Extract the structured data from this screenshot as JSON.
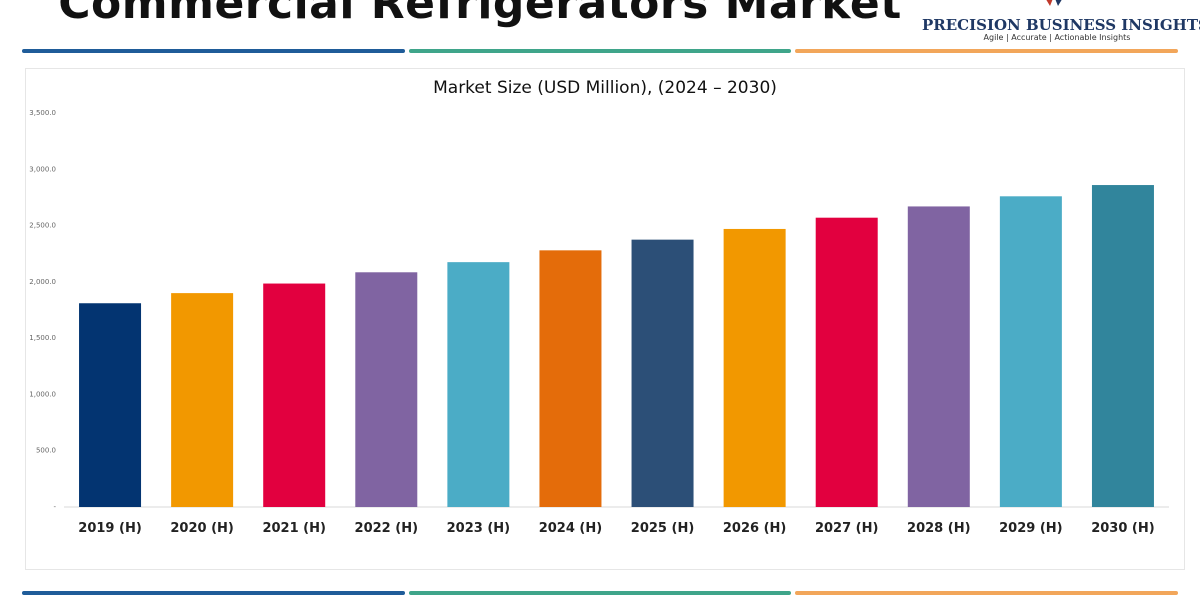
{
  "header": {
    "title": "Commercial Refrigerators Market",
    "logo_name": "PRECISION BUSINESS INSIGHTS",
    "logo_tagline": "Agile | Accurate | Actionable Insights"
  },
  "colors": {
    "stripe": [
      "#1f5c99",
      "#3fa58a",
      "#f2a65a"
    ],
    "bars": [
      "#033471",
      "#f29800",
      "#e2003f",
      "#8064a2",
      "#4bacc6",
      "#e46c0a",
      "#2c4f77",
      "#f29800",
      "#e2003f",
      "#8064a2",
      "#4bacc6",
      "#31859c"
    ]
  },
  "chart_data": {
    "type": "bar",
    "title": "Market Size (USD Million), (2024 – 2030)",
    "categories": [
      "2019 (H)",
      "2020 (H)",
      "2021 (H)",
      "2022 (H)",
      "2023 (H)",
      "2024 (H)",
      "2025 (H)",
      "2026 (H)",
      "2027 (H)",
      "2028 (H)",
      "2029 (H)",
      "2030 (H)"
    ],
    "values": [
      1810,
      1900,
      1985,
      2085,
      2175,
      2280,
      2375,
      2470,
      2570,
      2670,
      2760,
      2860
    ],
    "ylim": [
      0,
      3500
    ],
    "yticks": [
      0,
      500,
      1000,
      1500,
      2000,
      2500,
      3000,
      3500
    ],
    "ytick_labels": [
      "-",
      "500.0",
      "1,000.0",
      "1,500.0",
      "2,000.0",
      "2,500.0",
      "3,000.0",
      "3,500.0"
    ],
    "grid": false,
    "legend": "none"
  }
}
